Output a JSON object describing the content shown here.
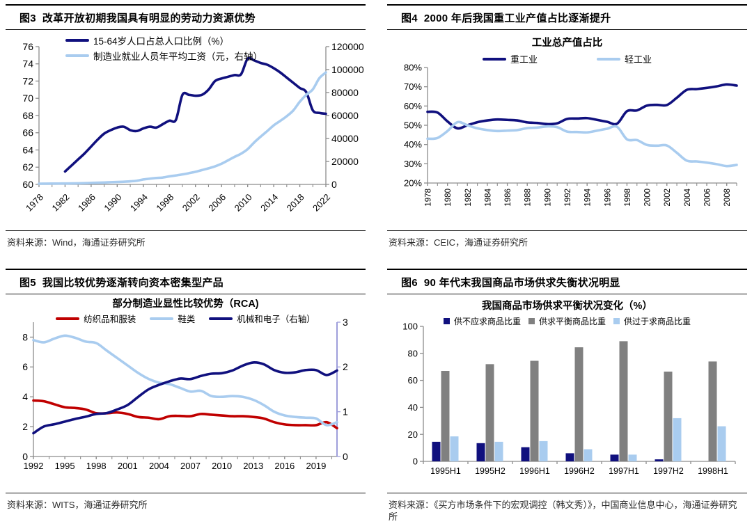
{
  "colors": {
    "navy": "#10107E",
    "lightblue": "#A9CCEF",
    "red": "#C00000",
    "gray": "#808080",
    "purple": "#9E9EDB",
    "axis": "#8C8C8C"
  },
  "figures": {
    "fig3": {
      "header": "图3  改革开放初期我国具有明显的劳动力资源优势",
      "source": "资料来源：Wind，海通证券研究所"
    },
    "fig4": {
      "header": "图4  2000 年后我国重工业产值占比逐渐提升",
      "source": "资料来源：CEIC，海通证券研究所"
    },
    "fig5": {
      "header": "图5  我国比较优势逐渐转向资本密集型产品",
      "source": "资料来源：WITS，海通证券研究所"
    },
    "fig6": {
      "header": "图6  90 年代末我国商品市场供求失衡状况明显",
      "source": "资料来源：《买方市场条件下的宏观调控（韩文秀）》，中国商业信息中心，海通证券研究所"
    }
  },
  "chart_data": [
    {
      "id": "fig3",
      "type": "line",
      "title": "",
      "axes": {
        "x": {
          "min": 1978,
          "max": 2022,
          "ticks": [
            1978,
            1982,
            1986,
            1990,
            1994,
            1998,
            2002,
            2006,
            2010,
            2014,
            2018,
            2022
          ],
          "minor_step": 2,
          "rotate": -45
        },
        "left": {
          "min": 60,
          "max": 76,
          "ticks": [
            60,
            62,
            64,
            66,
            68,
            70,
            72,
            74,
            76
          ]
        },
        "right": {
          "min": 0,
          "max": 120000,
          "ticks": [
            0,
            20000,
            40000,
            60000,
            80000,
            100000,
            120000
          ],
          "labels": [
            "0",
            "20000",
            "40000",
            "60000",
            "80000",
            "100000",
            "120000"
          ]
        }
      },
      "series": [
        {
          "name": "15-64岁人口占总人口比例（%）",
          "color": "navy",
          "axis": "left",
          "start": 1982,
          "values": [
            61.5,
            62.2,
            62.9,
            63.6,
            64.4,
            65.2,
            65.9,
            66.3,
            66.6,
            66.7,
            66.3,
            66.2,
            66.5,
            66.7,
            66.6,
            67.0,
            67.4,
            67.5,
            70.4,
            70.4,
            70.3,
            70.4,
            71.0,
            72.0,
            72.3,
            72.5,
            72.7,
            72.8,
            74.6,
            74.4,
            74.1,
            73.9,
            73.5,
            73.0,
            72.4,
            71.8,
            71.2,
            70.7,
            68.6,
            68.3,
            68.2
          ]
        },
        {
          "name": "制造业就业人员年平均工资（元，右轴）",
          "color": "lightblue",
          "axis": "right",
          "start": 1978,
          "values": [
            600,
            650,
            700,
            750,
            800,
            850,
            950,
            1100,
            1300,
            1450,
            1650,
            1900,
            2100,
            2300,
            2700,
            3200,
            4300,
            5000,
            5600,
            6000,
            7000,
            7800,
            8700,
            9800,
            11000,
            12500,
            14000,
            15700,
            18000,
            21000,
            24000,
            26800,
            30700,
            36500,
            41600,
            46400,
            51400,
            55300,
            59400,
            64400,
            72000,
            78100,
            82800,
            92500,
            97500
          ]
        }
      ]
    },
    {
      "id": "fig4",
      "type": "line",
      "title": "工业总产值占比",
      "axes": {
        "x": {
          "min": 1978,
          "max": 2009,
          "ticks": [
            1978,
            1980,
            1982,
            1984,
            1986,
            1988,
            1990,
            1992,
            1994,
            1996,
            1998,
            2000,
            2002,
            2004,
            2006,
            2008
          ],
          "minor_step": 1,
          "rotate": -90
        },
        "left": {
          "min": 20,
          "max": 80,
          "ticks": [
            20,
            30,
            40,
            50,
            60,
            70,
            80
          ],
          "labels": [
            "20%",
            "30%",
            "40%",
            "50%",
            "60%",
            "70%",
            "80%"
          ]
        }
      },
      "series": [
        {
          "name": "重工业",
          "color": "navy",
          "axis": "left",
          "start": 1978,
          "values": [
            57.0,
            56.6,
            52.0,
            48.4,
            50.0,
            51.6,
            52.5,
            53.0,
            52.8,
            52.5,
            51.5,
            51.2,
            50.6,
            51.0,
            53.3,
            53.5,
            53.7,
            52.8,
            51.8,
            50.8,
            57.3,
            57.7,
            60.2,
            60.6,
            60.5,
            64.3,
            68.4,
            68.8,
            69.4,
            70.2,
            71.2,
            70.6
          ]
        },
        {
          "name": "轻工业",
          "color": "lightblue",
          "axis": "left",
          "start": 1978,
          "values": [
            43.0,
            43.4,
            47.0,
            51.6,
            50.0,
            48.4,
            47.5,
            47.0,
            47.2,
            47.5,
            48.5,
            48.8,
            49.4,
            49.0,
            46.7,
            46.5,
            46.3,
            47.2,
            48.2,
            49.2,
            42.7,
            42.3,
            39.8,
            39.4,
            39.5,
            35.7,
            31.6,
            31.2,
            30.6,
            29.8,
            28.8,
            29.4
          ]
        }
      ]
    },
    {
      "id": "fig5",
      "type": "line",
      "title": "部分制造业显性比较优势（RCA)",
      "axes": {
        "x": {
          "min": 1992,
          "max": 2021,
          "ticks": [
            1992,
            1995,
            1998,
            2001,
            2004,
            2007,
            2010,
            2013,
            2016,
            2019
          ],
          "minor_step": 1.5,
          "rotate": 0
        },
        "left": {
          "min": 0,
          "max": 9,
          "ticks": [
            0,
            2,
            4,
            6,
            8
          ]
        },
        "right": {
          "min": 0,
          "max": 3,
          "ticks": [
            0,
            1,
            2,
            3
          ],
          "color": "purple"
        }
      },
      "series": [
        {
          "name": "纺织品和服装",
          "color": "red",
          "axis": "left",
          "start": 1992,
          "values": [
            3.75,
            3.7,
            3.5,
            3.3,
            3.25,
            3.15,
            2.9,
            2.9,
            2.95,
            2.85,
            2.65,
            2.6,
            2.5,
            2.7,
            2.72,
            2.7,
            2.85,
            2.8,
            2.75,
            2.7,
            2.7,
            2.65,
            2.55,
            2.3,
            2.15,
            2.1,
            2.1,
            2.1,
            2.3,
            1.9
          ]
        },
        {
          "name": "鞋类",
          "color": "lightblue",
          "axis": "left",
          "start": 1992,
          "values": [
            7.8,
            7.65,
            7.9,
            8.1,
            7.95,
            7.7,
            7.6,
            7.1,
            6.6,
            6.1,
            5.6,
            5.2,
            4.95,
            4.85,
            4.6,
            4.35,
            4.4,
            4.05,
            4.0,
            4.05,
            4.0,
            3.8,
            3.45,
            3.0,
            2.75,
            2.65,
            2.6,
            2.55,
            2.1,
            2.3
          ]
        },
        {
          "name": "机械和电子（右轴）",
          "color": "navy",
          "axis": "right",
          "start": 1992,
          "values": [
            0.52,
            0.67,
            0.72,
            0.78,
            0.84,
            0.89,
            0.95,
            0.97,
            1.05,
            1.15,
            1.33,
            1.5,
            1.6,
            1.68,
            1.74,
            1.73,
            1.8,
            1.85,
            1.86,
            1.92,
            2.03,
            2.1,
            2.06,
            1.93,
            1.87,
            1.88,
            1.93,
            1.93,
            1.82,
            1.92
          ]
        }
      ]
    },
    {
      "id": "fig6",
      "type": "bar",
      "title": "我国商品市场供求平衡状况变化（%）",
      "categories": [
        "1995H1",
        "1995H2",
        "1996H1",
        "1996H2",
        "1997H1",
        "1997H2",
        "1998H1"
      ],
      "axes": {
        "left": {
          "min": 0,
          "max": 100,
          "ticks": [
            0,
            20,
            40,
            60,
            80,
            100
          ]
        }
      },
      "series": [
        {
          "name": "供不应求商品比重",
          "color": "navy",
          "values": [
            14.5,
            13.5,
            10.5,
            6,
            5,
            1.5,
            0
          ]
        },
        {
          "name": "供求平衡商品比重",
          "color": "gray",
          "values": [
            67,
            72,
            74.5,
            84.5,
            89,
            66.5,
            74
          ]
        },
        {
          "name": "供过于求商品比重",
          "color": "lightblue",
          "values": [
            18.5,
            14.5,
            15,
            9,
            5,
            32,
            26
          ]
        }
      ]
    }
  ]
}
